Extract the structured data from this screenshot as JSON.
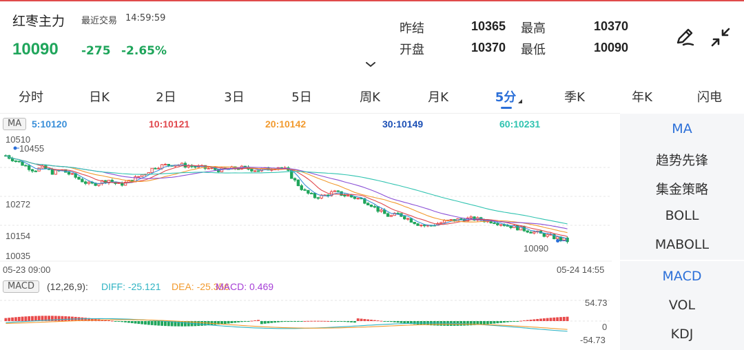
{
  "header": {
    "name": "红枣主力",
    "session": "最近交易",
    "time": "14:59:59",
    "price": "10090",
    "change": "-275",
    "change_pct": "-2.65%",
    "quote": {
      "prev_settle_label": "昨结",
      "prev_settle": "10365",
      "high_label": "最高",
      "high": "10370",
      "open_label": "开盘",
      "open": "10370",
      "low_label": "最低",
      "low": "10090"
    },
    "icons": [
      "pen-icon",
      "collapse-icon"
    ]
  },
  "tabs": [
    {
      "label": "分时",
      "active": false
    },
    {
      "label": "日K",
      "active": false
    },
    {
      "label": "2日",
      "active": false
    },
    {
      "label": "3日",
      "active": false
    },
    {
      "label": "5日",
      "active": false
    },
    {
      "label": "周K",
      "active": false
    },
    {
      "label": "月K",
      "active": false
    },
    {
      "label": "5分",
      "active": true
    },
    {
      "label": "季K",
      "active": false
    },
    {
      "label": "年K",
      "active": false
    },
    {
      "label": "闪电",
      "active": false
    }
  ],
  "ma": {
    "badge": "MA",
    "items": [
      {
        "text": "5:10120",
        "color": "#3a8fd9"
      },
      {
        "text": "10:10121",
        "color": "#e0474c"
      },
      {
        "text": "20:10142",
        "color": "#f29a2e"
      },
      {
        "text": "30:10149",
        "color": "#1b4fb5"
      },
      {
        "text": "60:10231",
        "color": "#2fc3b0"
      }
    ]
  },
  "price_axis": {
    "max": "10510",
    "high_marker": "10455",
    "mid1": "10272",
    "mid2": "10154",
    "min": "10035",
    "last_marker": "10090"
  },
  "dates": {
    "start": "05-23 09:00",
    "end": "05-24 14:55"
  },
  "macd": {
    "badge": "MACD",
    "params": "(12,26,9):",
    "diff": "DIFF: -25.121",
    "dea": "DEA: -25.356",
    "macd": "MACD: 0.469",
    "axis_top": "54.73",
    "axis_zero": "0",
    "axis_bottom": "-54.73"
  },
  "right_panel": {
    "main": [
      {
        "label": "MA",
        "active": true
      },
      {
        "label": "趋势先锋",
        "active": false
      },
      {
        "label": "集金策略",
        "active": false
      },
      {
        "label": "BOLL",
        "active": false
      },
      {
        "label": "MABOLL",
        "active": false
      }
    ],
    "sub": [
      {
        "label": "MACD",
        "active": true
      },
      {
        "label": "VOL",
        "active": false
      },
      {
        "label": "KDJ",
        "active": false
      }
    ]
  },
  "colors": {
    "up": "#e84a4a",
    "down": "#1fa55b",
    "accent": "#2b6fd8"
  },
  "chart_data": {
    "type": "candlestick",
    "interval": "5分",
    "y_range": [
      10035,
      10510
    ],
    "close_path": [
      10440,
      10420,
      10400,
      10380,
      10390,
      10370,
      10380,
      10360,
      10340,
      10320,
      10330,
      10340,
      10320,
      10330,
      10350,
      10370,
      10395,
      10400,
      10405,
      10400,
      10395,
      10390,
      10385,
      10380,
      10385,
      10390,
      10385,
      10380,
      10385,
      10395,
      10380,
      10330,
      10290,
      10270,
      10275,
      10290,
      10280,
      10270,
      10260,
      10240,
      10210,
      10190,
      10200,
      10180,
      10160,
      10150,
      10160,
      10170,
      10175,
      10180,
      10180,
      10175,
      10170,
      10160,
      10150,
      10140,
      10130,
      10120,
      10110,
      10100,
      10090
    ],
    "ma": [
      {
        "name": "5",
        "value": 10120
      },
      {
        "name": "10",
        "value": 10121
      },
      {
        "name": "20",
        "value": 10142
      },
      {
        "name": "30",
        "value": 10149
      },
      {
        "name": "60",
        "value": 10231
      }
    ],
    "macd": {
      "diff": -25.121,
      "dea": -25.356,
      "macd": 0.469,
      "range": [
        -54.73,
        54.73
      ]
    }
  }
}
